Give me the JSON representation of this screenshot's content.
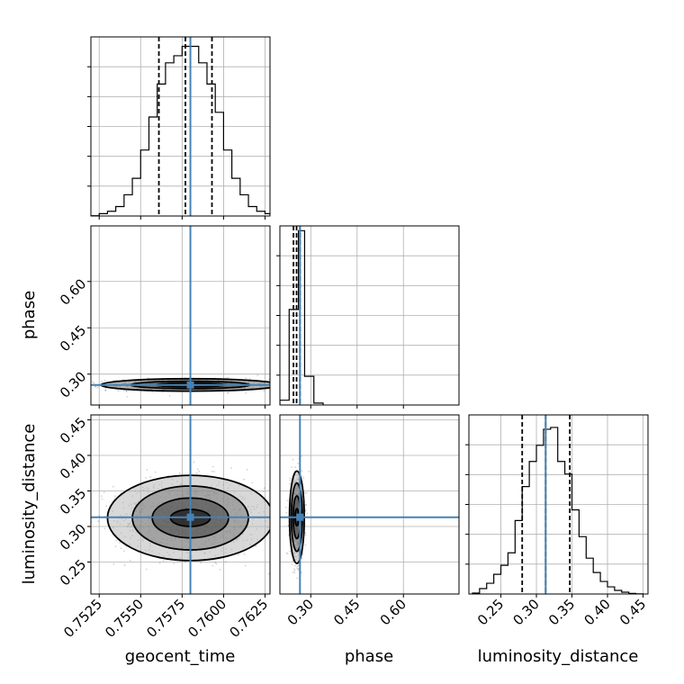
{
  "chart_data": {
    "type": "corner",
    "parameters": [
      "geocent_time",
      "phase",
      "luminosity_distance"
    ],
    "truths": {
      "geocent_time": 0.758,
      "phase": 0.265,
      "luminosity_distance": 0.313
    },
    "truth_color": "#4682b4",
    "grid": true,
    "geocent_time": {
      "label": "geocent_time",
      "range": [
        0.752,
        0.7628
      ],
      "ticks": [
        0.7525,
        0.755,
        0.7575,
        0.76,
        0.7625
      ],
      "tick_labels": [
        "0.7525",
        "0.7550",
        "0.7575",
        "0.7600",
        "0.7625"
      ],
      "quantiles": [
        0.7561,
        0.7577,
        0.7593
      ],
      "hist_edges": [
        0.752,
        0.7525,
        0.753,
        0.7535,
        0.754,
        0.7545,
        0.755,
        0.7555,
        0.756,
        0.7565,
        0.757,
        0.7575,
        0.758,
        0.7585,
        0.759,
        0.7595,
        0.76,
        0.7605,
        0.761,
        0.7615,
        0.762,
        0.7625,
        0.7628
      ],
      "hist_counts": [
        0.1,
        1,
        2,
        4,
        9,
        16,
        28,
        42,
        56,
        65,
        68,
        72,
        72,
        65,
        56,
        44,
        28,
        16,
        9,
        4,
        2,
        1
      ],
      "marginal_ylim": [
        0,
        76
      ]
    },
    "phase": {
      "label": "phase",
      "range": [
        0.2,
        0.78
      ],
      "ticks": [
        0.3,
        0.45,
        0.6
      ],
      "tick_labels": [
        "0.30",
        "0.45",
        "0.60"
      ],
      "quantiles": [
        0.244,
        0.254,
        0.265
      ],
      "hist_edges": [
        0.2,
        0.23,
        0.26,
        0.28,
        0.31,
        0.34
      ],
      "hist_counts": [
        10,
        200,
        365,
        60,
        4
      ],
      "marginal_ylim": [
        0,
        375
      ]
    },
    "luminosity_distance": {
      "label": "luminosity_distance",
      "range": [
        0.205,
        0.457
      ],
      "ticks": [
        0.25,
        0.3,
        0.35,
        0.4,
        0.45
      ],
      "tick_labels": [
        "0.25",
        "0.30",
        "0.35",
        "0.40",
        "0.45"
      ],
      "quantiles": [
        0.28,
        0.313,
        0.347
      ],
      "hist_edges": [
        0.21,
        0.22,
        0.23,
        0.24,
        0.25,
        0.26,
        0.27,
        0.28,
        0.29,
        0.3,
        0.31,
        0.32,
        0.33,
        0.34,
        0.35,
        0.36,
        0.37,
        0.38,
        0.39,
        0.4,
        0.41,
        0.42,
        0.43,
        0.44,
        0.45
      ],
      "hist_counts": [
        0.5,
        3,
        6,
        11,
        16,
        23,
        41,
        60,
        74,
        83,
        92,
        93,
        74,
        67,
        47,
        32,
        20,
        12,
        7,
        4,
        2,
        1,
        0.3,
        0.1
      ],
      "marginal_ylim": [
        0,
        100
      ]
    },
    "joint_densities": [
      {
        "x": "geocent_time",
        "y": "phase",
        "center": [
          0.758,
          0.265
        ],
        "levels_half_widths": [
          [
            0.0021,
            0.006
          ],
          [
            0.0036,
            0.012
          ],
          [
            0.0054,
            0.02
          ]
        ]
      },
      {
        "x": "geocent_time",
        "y": "luminosity_distance",
        "center": [
          0.758,
          0.312
        ],
        "levels_half_widths": [
          [
            0.0012,
            0.012
          ],
          [
            0.0023,
            0.028
          ],
          [
            0.0035,
            0.045
          ],
          [
            0.005,
            0.06
          ]
        ]
      },
      {
        "x": "phase",
        "y": "luminosity_distance",
        "center": [
          0.255,
          0.313
        ],
        "levels_half_widths": [
          [
            0.006,
            0.012
          ],
          [
            0.012,
            0.03
          ],
          [
            0.018,
            0.048
          ],
          [
            0.024,
            0.065
          ]
        ]
      }
    ]
  }
}
